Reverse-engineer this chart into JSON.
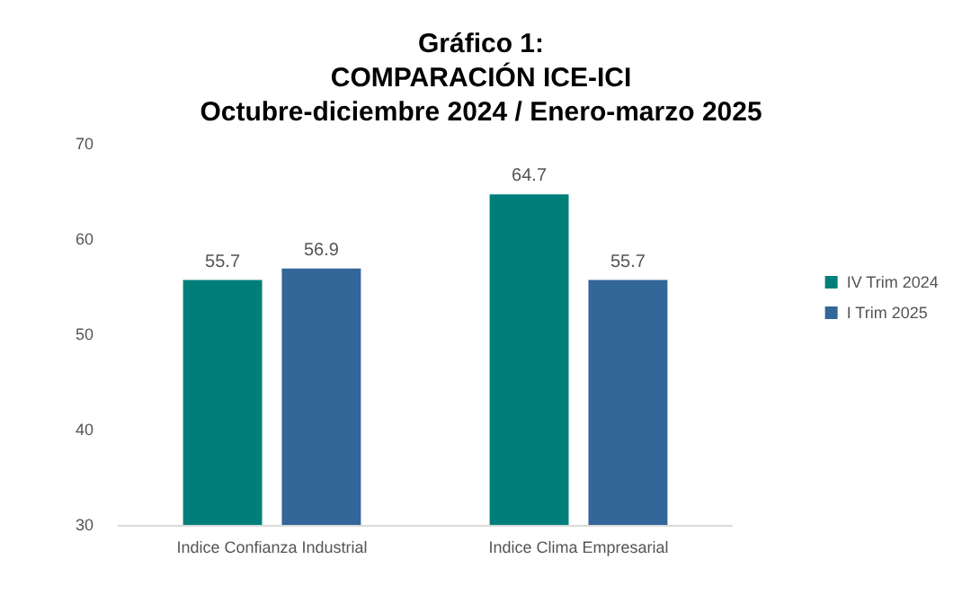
{
  "chart_data": {
    "type": "bar",
    "title": "Gráfico 1:\nCOMPARACIÓN ICE-ICI\nOctubre-diciembre 2024 / Enero-marzo 2025",
    "categories": [
      "Indice Confianza Industrial",
      "Indice Clima Empresarial"
    ],
    "series": [
      {
        "name": "IV Trim 2024",
        "color": "#007f7a",
        "values": [
          55.7,
          64.7
        ]
      },
      {
        "name": "I Trim 2025",
        "color": "#336699",
        "values": [
          56.9,
          55.7
        ]
      }
    ],
    "ylim": [
      30,
      70
    ],
    "yticks": [
      30,
      40,
      50,
      60,
      70
    ],
    "grid": false,
    "legend": "right",
    "data_labels": true
  }
}
